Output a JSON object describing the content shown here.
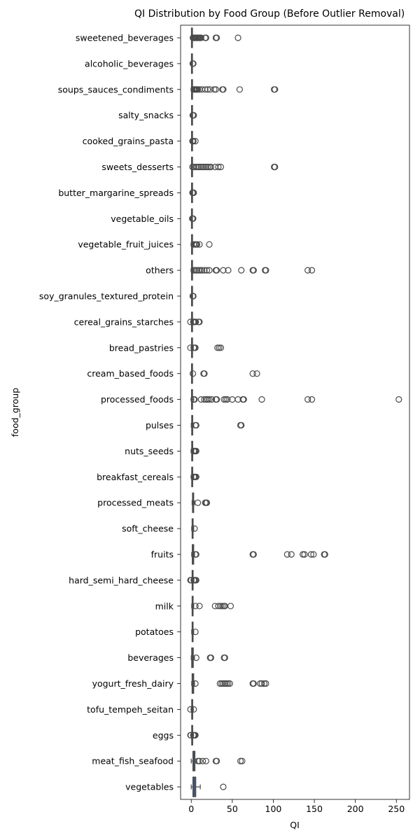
{
  "chart_data": {
    "type": "boxplot",
    "title": "QI Distribution by Food Group (Before Outlier Removal)",
    "xlabel": "QI",
    "ylabel": "food_group",
    "xlim": [
      -13,
      266
    ],
    "xticks": [
      0,
      50,
      100,
      150,
      200,
      250
    ],
    "orientation": "horizontal",
    "box_color": "#3f5e99",
    "line_color": "#4a4a4a",
    "categories": [
      {
        "name": "sweetened_beverages",
        "whisker_low": 0,
        "q1": 0.2,
        "median": 0.5,
        "q3": 1,
        "whisker_high": 2,
        "outliers": [
          2,
          3,
          4,
          5,
          6,
          7,
          8,
          9,
          10,
          11,
          12,
          17,
          18,
          30,
          31,
          57
        ]
      },
      {
        "name": "alcoholic_beverages",
        "whisker_low": 0,
        "q1": 0.2,
        "median": 0.5,
        "q3": 1,
        "whisker_high": 1.5,
        "outliers": [
          1.8,
          2.5
        ]
      },
      {
        "name": "soups_sauces_condiments",
        "whisker_low": 0,
        "q1": 0.3,
        "median": 0.8,
        "q3": 1.5,
        "whisker_high": 3,
        "outliers": [
          3,
          4,
          5,
          6,
          7,
          8,
          10,
          13,
          17,
          20,
          23,
          28,
          30,
          38,
          39,
          59,
          101,
          102
        ]
      },
      {
        "name": "salty_snacks",
        "whisker_low": 0,
        "q1": 0.3,
        "median": 0.6,
        "q3": 1,
        "whisker_high": 1.5,
        "outliers": [
          1.8,
          2.5,
          3
        ]
      },
      {
        "name": "cooked_grains_pasta",
        "whisker_low": 0,
        "q1": 0.3,
        "median": 0.6,
        "q3": 1,
        "whisker_high": 1.5,
        "outliers": [
          1.5,
          2,
          2.5,
          5
        ]
      },
      {
        "name": "sweets_desserts",
        "whisker_low": 0,
        "q1": 0.3,
        "median": 0.8,
        "q3": 1.5,
        "whisker_high": 3,
        "outliers": [
          1.5,
          3,
          6,
          8,
          10,
          12,
          14,
          16,
          18,
          20,
          22,
          24,
          29,
          33,
          36,
          101,
          102
        ]
      },
      {
        "name": "butter_margarine_spreads",
        "whisker_low": 0,
        "q1": 0.3,
        "median": 0.6,
        "q3": 1,
        "whisker_high": 1.5,
        "outliers": [
          1.5,
          2,
          2.5,
          3
        ]
      },
      {
        "name": "vegetable_oils",
        "whisker_low": 0,
        "q1": 0.2,
        "median": 0.4,
        "q3": 0.8,
        "whisker_high": 1.2,
        "outliers": [
          1.2,
          1.8,
          2.3
        ]
      },
      {
        "name": "vegetable_fruit_juices",
        "whisker_low": 0,
        "q1": 0.3,
        "median": 0.8,
        "q3": 1.5,
        "whisker_high": 3,
        "outliers": [
          3,
          5,
          6,
          7,
          10,
          22
        ]
      },
      {
        "name": "others",
        "whisker_low": 0,
        "q1": 0.3,
        "median": 0.8,
        "q3": 1.5,
        "whisker_high": 3,
        "outliers": [
          3,
          5,
          7,
          9,
          11,
          13,
          16,
          19,
          22,
          30,
          31,
          39,
          45,
          61,
          75,
          76,
          90,
          91,
          142,
          147
        ]
      },
      {
        "name": "soy_granules_textured_protein",
        "whisker_low": 0,
        "q1": 0.3,
        "median": 0.6,
        "q3": 1,
        "whisker_high": 1.5,
        "outliers": [
          1.8,
          2.5
        ]
      },
      {
        "name": "cereal_grains_starches",
        "whisker_low": 0,
        "q1": 0.3,
        "median": 0.8,
        "q3": 1.5,
        "whisker_high": 2.5,
        "outliers": [
          -1,
          2.5,
          3.5,
          4.5,
          5.5,
          9,
          10
        ]
      },
      {
        "name": "bread_pastries",
        "whisker_low": 0,
        "q1": 0.3,
        "median": 0.8,
        "q3": 1.5,
        "whisker_high": 2.5,
        "outliers": [
          -1,
          3,
          4,
          5,
          32,
          34,
          36
        ]
      },
      {
        "name": "cream_based_foods",
        "whisker_low": 0,
        "q1": 0.3,
        "median": 0.6,
        "q3": 1,
        "whisker_high": 1.5,
        "outliers": [
          2,
          15,
          16,
          75,
          80
        ]
      },
      {
        "name": "processed_foods",
        "whisker_low": 0,
        "q1": 0.3,
        "median": 0.8,
        "q3": 1.5,
        "whisker_high": 3,
        "outliers": [
          3,
          4,
          12,
          16,
          18,
          20,
          22,
          25,
          30,
          31,
          40,
          42,
          44,
          50,
          57,
          63,
          64,
          86,
          142,
          147,
          253
        ]
      },
      {
        "name": "pulses",
        "whisker_low": 0,
        "q1": 0.5,
        "median": 1,
        "q3": 1.8,
        "whisker_high": 3,
        "outliers": [
          5,
          6,
          60,
          61
        ]
      },
      {
        "name": "nuts_seeds",
        "whisker_low": 0,
        "q1": 0.5,
        "median": 1,
        "q3": 1.8,
        "whisker_high": 3,
        "outliers": [
          3,
          4,
          5,
          6
        ]
      },
      {
        "name": "breakfast_cereals",
        "whisker_low": 0,
        "q1": 0.5,
        "median": 1,
        "q3": 1.8,
        "whisker_high": 3,
        "outliers": [
          3,
          4,
          5,
          6
        ]
      },
      {
        "name": "processed_meats",
        "whisker_low": 1,
        "q1": 1.5,
        "median": 2,
        "q3": 3,
        "whisker_high": 4,
        "outliers": [
          8,
          17,
          18,
          19
        ]
      },
      {
        "name": "soft_cheese",
        "whisker_low": 0.5,
        "q1": 1,
        "median": 1.5,
        "q3": 2,
        "whisker_high": 3,
        "outliers": [
          4
        ]
      },
      {
        "name": "fruits",
        "whisker_low": 0.5,
        "q1": 1.2,
        "median": 2,
        "q3": 3,
        "whisker_high": 4,
        "outliers": [
          5,
          6,
          75,
          76,
          117,
          122,
          136,
          138,
          146,
          149,
          162,
          163
        ]
      },
      {
        "name": "hard_semi_hard_cheese",
        "whisker_low": 0.5,
        "q1": 1,
        "median": 1.5,
        "q3": 2,
        "whisker_high": 3,
        "outliers": [
          -1,
          0,
          3,
          4,
          5,
          6
        ]
      },
      {
        "name": "milk",
        "whisker_low": 0.5,
        "q1": 1,
        "median": 1.5,
        "q3": 2.2,
        "whisker_high": 3,
        "outliers": [
          5,
          10,
          29,
          33,
          36,
          38,
          40,
          41,
          48
        ]
      },
      {
        "name": "potatoes",
        "whisker_low": 0.5,
        "q1": 1,
        "median": 1.5,
        "q3": 2,
        "whisker_high": 3,
        "outliers": [
          5
        ]
      },
      {
        "name": "beverages",
        "whisker_low": 0,
        "q1": 0.5,
        "median": 1.5,
        "q3": 2.5,
        "whisker_high": 4,
        "outliers": [
          6,
          23,
          24,
          40,
          41
        ]
      },
      {
        "name": "yogurt_fresh_dairy",
        "whisker_low": 0.5,
        "q1": 1,
        "median": 2,
        "q3": 3,
        "whisker_high": 4,
        "outliers": [
          5,
          35,
          37,
          39,
          41,
          43,
          45,
          47,
          75,
          76,
          84,
          86,
          89,
          91
        ]
      },
      {
        "name": "tofu_tempeh_seitan",
        "whisker_low": 0,
        "q1": 0.5,
        "median": 1,
        "q3": 1.5,
        "whisker_high": 2.5,
        "outliers": [
          -1,
          3
        ]
      },
      {
        "name": "eggs",
        "whisker_low": 0,
        "q1": 0.5,
        "median": 1,
        "q3": 1.5,
        "whisker_high": 2,
        "outliers": [
          -1,
          -0.5,
          2.5,
          3,
          3.5,
          4,
          4.5,
          5
        ]
      },
      {
        "name": "meat_fish_seafood",
        "whisker_low": 0,
        "q1": 2,
        "median": 3,
        "q3": 4.5,
        "whisker_high": 6,
        "outliers": [
          8,
          10,
          14,
          18,
          30,
          31,
          60,
          62
        ]
      },
      {
        "name": "vegetables",
        "whisker_low": 0,
        "q1": 2,
        "median": 3.5,
        "q3": 5.5,
        "whisker_high": 11,
        "outliers": [
          39
        ]
      }
    ]
  }
}
